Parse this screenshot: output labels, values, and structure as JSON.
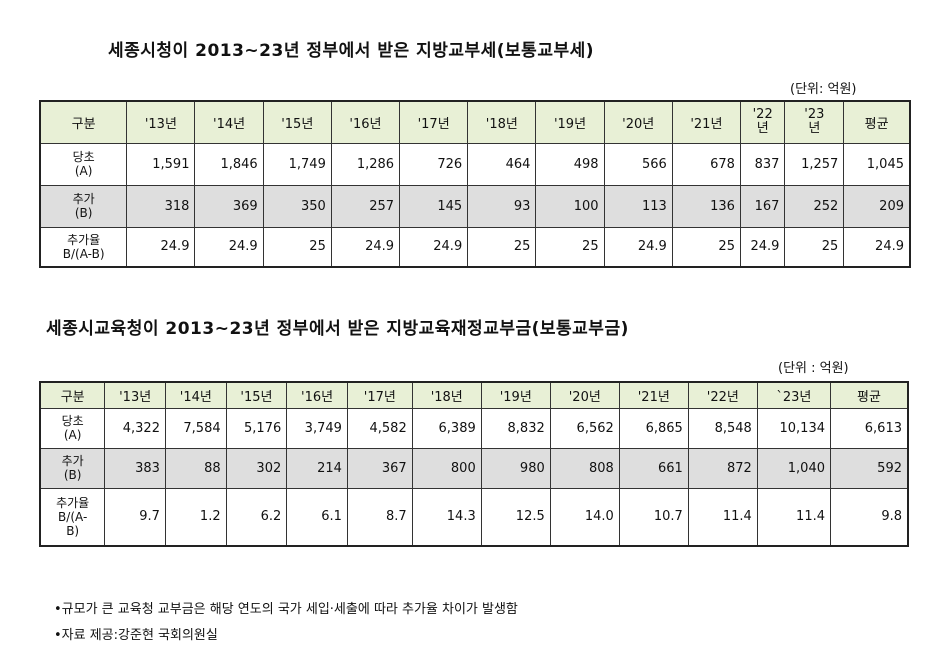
{
  "table1": {
    "title": "세종시청이 2013~23년 정부에서 받은 지방교부세(보통교부세)",
    "unit": "(단위: 억원)",
    "headers": [
      "구분",
      "'13년",
      "'14년",
      "'15년",
      "'16년",
      "'17년",
      "'18년",
      "'19년",
      "'20년",
      "'21년",
      "'22\n년",
      "'23\n년",
      "평균"
    ],
    "rows": [
      {
        "label": "당초\n(A)",
        "values": [
          "1,591",
          "1,846",
          "1,749",
          "1,286",
          "726",
          "464",
          "498",
          "566",
          "678",
          "837",
          "1,257",
          "1,045"
        ]
      },
      {
        "label": "추가\n(B)",
        "values": [
          "318",
          "369",
          "350",
          "257",
          "145",
          "93",
          "100",
          "113",
          "136",
          "167",
          "252",
          "209"
        ]
      },
      {
        "label": "추가율\nB/(A-B)",
        "values": [
          "24.9",
          "24.9",
          "25",
          "24.9",
          "24.9",
          "25",
          "25",
          "24.9",
          "25",
          "24.9",
          "25",
          "24.9"
        ]
      }
    ]
  },
  "table2": {
    "title": "세종시교육청이 2013~23년 정부에서 받은 지방교육재정교부금(보통교부금)",
    "unit": "(단위 : 억원)",
    "headers": [
      "구분",
      "'13년",
      "'14년",
      "'15년",
      "'16년",
      "'17년",
      "'18년",
      "'19년",
      "'20년",
      "'21년",
      "'22년",
      "`23년",
      "평균"
    ],
    "rows": [
      {
        "label": "당초\n(A)",
        "values": [
          "4,322",
          "7,584",
          "5,176",
          "3,749",
          "4,582",
          "6,389",
          "8,832",
          "6,562",
          "6,865",
          "8,548",
          "10,134",
          "6,613"
        ]
      },
      {
        "label": "추가\n(B)",
        "values": [
          "383",
          "88",
          "302",
          "214",
          "367",
          "800",
          "980",
          "808",
          "661",
          "872",
          "1,040",
          "592"
        ]
      },
      {
        "label": "추가율\nB/(A-\nB)",
        "values": [
          "9.7",
          "1.2",
          "6.2",
          "6.1",
          "8.7",
          "14.3",
          "12.5",
          "14.0",
          "10.7",
          "11.4",
          "11.4",
          "9.8"
        ]
      }
    ]
  },
  "notes": [
    "•규모가 큰 교육청 교부금은 해당 연도의 국가 세입·세출에 따라 추가율 차이가 발생함",
    "•자료 제공:강준현 국회의원실"
  ]
}
